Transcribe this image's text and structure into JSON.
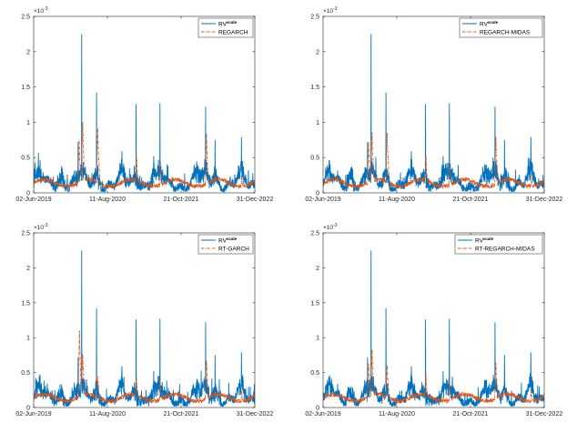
{
  "figure": {
    "x_tick_labels": [
      "02-Jun-2019",
      "11-Aug-2020",
      "21-Oct-2021",
      "31-Dec-2022"
    ],
    "y_tick_labels": [
      "0",
      "0.5",
      "1",
      "1.5",
      "2",
      "2.5"
    ],
    "y_exponent_base": "×10",
    "y_exponent_power": "-3",
    "series_colors": {
      "rv": "#0072BD",
      "model": "#D95319"
    }
  },
  "chart_data": [
    {
      "type": "line",
      "x_range": [
        "2019-06-02",
        "2022-12-31"
      ],
      "x_ticks": [
        "2019-06-02",
        "2020-08-11",
        "2021-10-21",
        "2022-12-31"
      ],
      "ylim": [
        0,
        0.0025
      ],
      "y_scale_factor": "10^-3",
      "grid": false,
      "legend_position": "top-right",
      "series": [
        {
          "name": "RV",
          "name_superscript": "scale",
          "color": "#0072BD",
          "style": "solid"
        },
        {
          "name": "REGARCH",
          "color": "#D95319",
          "style": "dash-dot"
        }
      ],
      "rv_spikes": [
        {
          "date": "2019-07-10",
          "value": 0.00046
        },
        {
          "date": "2019-11-15",
          "value": 0.0003
        },
        {
          "date": "2020-02-20",
          "value": 0.00072
        },
        {
          "date": "2020-03-12",
          "value": 0.00225
        },
        {
          "date": "2020-06-08",
          "value": 0.00142
        },
        {
          "date": "2020-11-05",
          "value": 0.00059
        },
        {
          "date": "2021-01-28",
          "value": 0.00126
        },
        {
          "date": "2021-05-12",
          "value": 0.00052
        },
        {
          "date": "2021-06-18",
          "value": 0.00127
        },
        {
          "date": "2022-01-24",
          "value": 0.0004
        },
        {
          "date": "2022-03-15",
          "value": 0.00122
        },
        {
          "date": "2022-05-10",
          "value": 0.00075
        },
        {
          "date": "2022-10-13",
          "value": 0.00079
        }
      ],
      "model_peaks": [
        {
          "date": "2020-02-26",
          "value": 0.00072
        },
        {
          "date": "2020-03-18",
          "value": 0.00098
        },
        {
          "date": "2020-06-15",
          "value": 0.0009
        },
        {
          "date": "2021-01-30",
          "value": 0.00055
        },
        {
          "date": "2022-03-20",
          "value": 0.00082
        }
      ]
    },
    {
      "type": "line",
      "x_range": [
        "2019-06-02",
        "2022-12-31"
      ],
      "x_ticks": [
        "2019-06-02",
        "2020-08-11",
        "2021-10-21",
        "2022-12-31"
      ],
      "ylim": [
        0,
        0.0025
      ],
      "y_scale_factor": "10^-3",
      "grid": false,
      "legend_position": "top-right",
      "series": [
        {
          "name": "RV",
          "name_superscript": "scale",
          "color": "#0072BD",
          "style": "solid"
        },
        {
          "name": "REGARCH-MIDAS",
          "color": "#D95319",
          "style": "dash-dot"
        }
      ],
      "rv_spikes": [
        {
          "date": "2019-07-10",
          "value": 0.00046
        },
        {
          "date": "2019-11-15",
          "value": 0.0003
        },
        {
          "date": "2020-02-20",
          "value": 0.00072
        },
        {
          "date": "2020-03-12",
          "value": 0.00225
        },
        {
          "date": "2020-06-08",
          "value": 0.00142
        },
        {
          "date": "2020-11-05",
          "value": 0.00059
        },
        {
          "date": "2021-01-28",
          "value": 0.00126
        },
        {
          "date": "2021-05-12",
          "value": 0.00052
        },
        {
          "date": "2021-06-18",
          "value": 0.00127
        },
        {
          "date": "2022-01-24",
          "value": 0.0004
        },
        {
          "date": "2022-03-15",
          "value": 0.00122
        },
        {
          "date": "2022-05-10",
          "value": 0.00075
        },
        {
          "date": "2022-10-13",
          "value": 0.00079
        }
      ],
      "model_peaks": [
        {
          "date": "2020-02-26",
          "value": 0.0007
        },
        {
          "date": "2020-03-18",
          "value": 0.00085
        },
        {
          "date": "2020-06-15",
          "value": 0.00088
        },
        {
          "date": "2021-01-30",
          "value": 0.00052
        },
        {
          "date": "2022-03-20",
          "value": 0.0008
        }
      ]
    },
    {
      "type": "line",
      "x_range": [
        "2019-06-02",
        "2022-12-31"
      ],
      "x_ticks": [
        "2019-06-02",
        "2020-08-11",
        "2021-10-21",
        "2022-12-31"
      ],
      "ylim": [
        0,
        0.0025
      ],
      "y_scale_factor": "10^-3",
      "grid": false,
      "legend_position": "top-right",
      "series": [
        {
          "name": "RV",
          "name_superscript": "scale",
          "color": "#0072BD",
          "style": "solid"
        },
        {
          "name": "RT-GARCH",
          "color": "#D95319",
          "style": "dash-dot"
        }
      ],
      "rv_spikes": [
        {
          "date": "2019-07-10",
          "value": 0.00046
        },
        {
          "date": "2019-11-15",
          "value": 0.0003
        },
        {
          "date": "2020-02-20",
          "value": 0.00072
        },
        {
          "date": "2020-03-12",
          "value": 0.00225
        },
        {
          "date": "2020-06-08",
          "value": 0.00142
        },
        {
          "date": "2020-11-05",
          "value": 0.00059
        },
        {
          "date": "2021-01-28",
          "value": 0.00126
        },
        {
          "date": "2021-05-12",
          "value": 0.00052
        },
        {
          "date": "2021-06-18",
          "value": 0.00127
        },
        {
          "date": "2022-01-24",
          "value": 0.0004
        },
        {
          "date": "2022-03-15",
          "value": 0.00122
        },
        {
          "date": "2022-05-10",
          "value": 0.00075
        },
        {
          "date": "2022-10-13",
          "value": 0.00079
        }
      ],
      "model_peaks": [
        {
          "date": "2020-02-28",
          "value": 0.0011
        },
        {
          "date": "2020-03-18",
          "value": 0.00078
        },
        {
          "date": "2020-06-15",
          "value": 0.00045
        },
        {
          "date": "2021-01-30",
          "value": 0.0004
        },
        {
          "date": "2022-03-20",
          "value": 0.00068
        }
      ]
    },
    {
      "type": "line",
      "x_range": [
        "2019-06-02",
        "2022-12-31"
      ],
      "x_ticks": [
        "2019-06-02",
        "2020-08-11",
        "2021-10-21",
        "2022-12-31"
      ],
      "ylim": [
        0,
        0.0025
      ],
      "y_scale_factor": "10^-3",
      "grid": false,
      "legend_position": "top-right",
      "series": [
        {
          "name": "RV",
          "name_superscript": "scale",
          "color": "#0072BD",
          "style": "solid"
        },
        {
          "name": "RT-REGARCH-MIDAS",
          "color": "#D95319",
          "style": "dash-dot"
        }
      ],
      "rv_spikes": [
        {
          "date": "2019-07-10",
          "value": 0.00046
        },
        {
          "date": "2019-11-15",
          "value": 0.0003
        },
        {
          "date": "2020-02-20",
          "value": 0.00072
        },
        {
          "date": "2020-03-12",
          "value": 0.00225
        },
        {
          "date": "2020-06-08",
          "value": 0.00142
        },
        {
          "date": "2020-11-05",
          "value": 0.00059
        },
        {
          "date": "2021-01-28",
          "value": 0.00126
        },
        {
          "date": "2021-05-12",
          "value": 0.00052
        },
        {
          "date": "2021-06-18",
          "value": 0.00127
        },
        {
          "date": "2022-01-24",
          "value": 0.0004
        },
        {
          "date": "2022-03-15",
          "value": 0.00122
        },
        {
          "date": "2022-05-10",
          "value": 0.00075
        },
        {
          "date": "2022-10-13",
          "value": 0.00079
        }
      ],
      "model_peaks": [
        {
          "date": "2020-02-26",
          "value": 0.00065
        },
        {
          "date": "2020-03-18",
          "value": 0.0008
        },
        {
          "date": "2020-06-15",
          "value": 0.0006
        },
        {
          "date": "2021-01-30",
          "value": 0.00045
        },
        {
          "date": "2022-03-20",
          "value": 0.00065
        }
      ]
    }
  ]
}
